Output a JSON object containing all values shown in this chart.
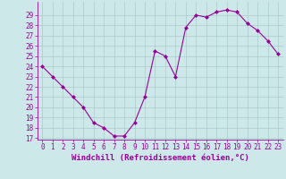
{
  "x": [
    0,
    1,
    2,
    3,
    4,
    5,
    6,
    7,
    8,
    9,
    10,
    11,
    12,
    13,
    14,
    15,
    16,
    17,
    18,
    19,
    20,
    21,
    22,
    23
  ],
  "y": [
    24.0,
    23.0,
    22.0,
    21.0,
    20.0,
    18.5,
    18.0,
    17.2,
    17.2,
    18.5,
    21.0,
    25.5,
    25.0,
    23.0,
    27.8,
    29.0,
    28.8,
    29.3,
    29.5,
    29.3,
    28.2,
    27.5,
    26.5,
    25.2
  ],
  "line_color": "#990099",
  "marker": "D",
  "marker_size": 2,
  "bg_color": "#cce8e8",
  "grid_color": "#aacccc",
  "xlabel": "Windchill (Refroidissement éolien,°C)",
  "xlabel_color": "#990099",
  "tick_color": "#990099",
  "ylim_min": 17,
  "ylim_max": 30,
  "xlim_min": -0.5,
  "xlim_max": 23.5,
  "yticks": [
    17,
    18,
    19,
    20,
    21,
    22,
    23,
    24,
    25,
    26,
    27,
    28,
    29
  ],
  "xticks": [
    0,
    1,
    2,
    3,
    4,
    5,
    6,
    7,
    8,
    9,
    10,
    11,
    12,
    13,
    14,
    15,
    16,
    17,
    18,
    19,
    20,
    21,
    22,
    23
  ],
  "tick_fontsize": 5.5,
  "xlabel_fontsize": 6.5,
  "linewidth": 0.8
}
